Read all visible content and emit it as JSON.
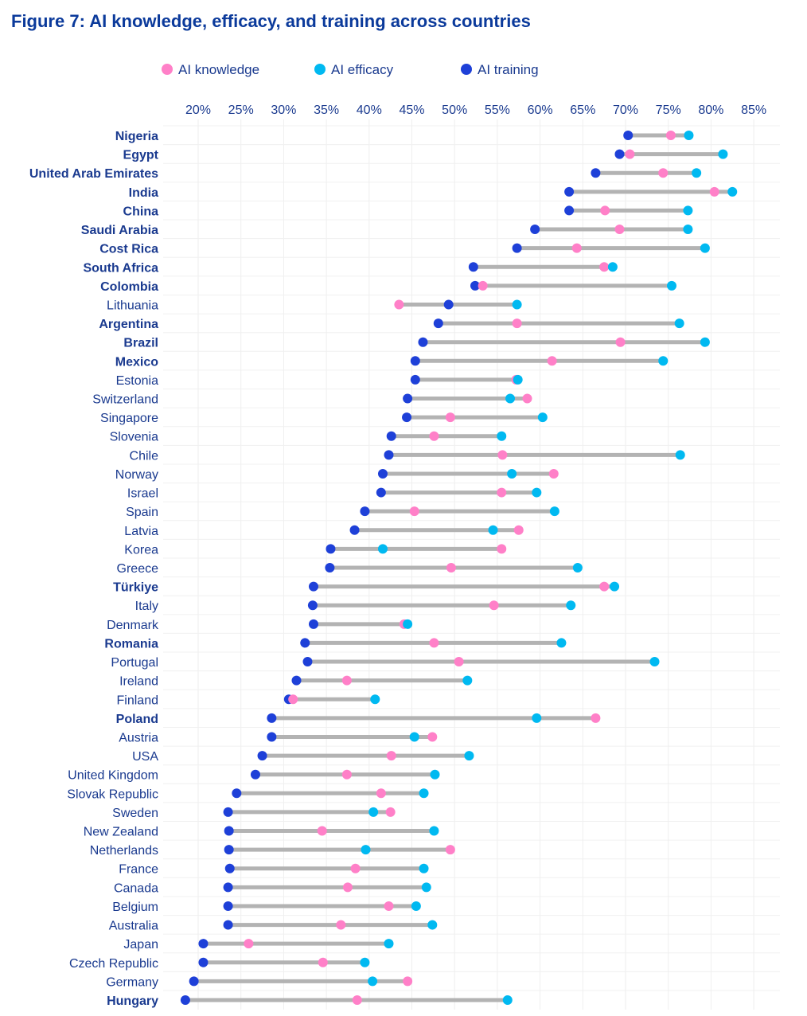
{
  "chart_data": {
    "type": "dot",
    "title": "Figure 7: AI knowledge, efficacy, and training across countries",
    "xlabel": "",
    "ylabel": "",
    "xlim": [
      18,
      87
    ],
    "x_ticks": [
      "20%",
      "25%",
      "30%",
      "35%",
      "40%",
      "45%",
      "50%",
      "55%",
      "60%",
      "65%",
      "70%",
      "75%",
      "80%",
      "85%"
    ],
    "x_tick_values": [
      20,
      25,
      30,
      35,
      40,
      45,
      50,
      55,
      60,
      65,
      70,
      75,
      80,
      85
    ],
    "grid": true,
    "legend_position": "top",
    "series": [
      {
        "name": "AI knowledge",
        "key": "k",
        "color": "#ff80c8"
      },
      {
        "name": "AI efficacy",
        "key": "e",
        "color": "#00b9f1"
      },
      {
        "name": "AI training",
        "key": "t",
        "color": "#1e40d8"
      }
    ],
    "connector_color": "#b3b3b3",
    "countries": [
      {
        "name": "Nigeria",
        "bold": true,
        "k": 75.3,
        "e": 77.4,
        "t": 70.3
      },
      {
        "name": "Egypt",
        "bold": true,
        "k": 70.5,
        "e": 81.4,
        "t": 69.3
      },
      {
        "name": "United Arab Emirates",
        "bold": true,
        "k": 74.4,
        "e": 78.3,
        "t": 66.5
      },
      {
        "name": "India",
        "bold": true,
        "k": 80.4,
        "e": 82.5,
        "t": 63.4
      },
      {
        "name": "China",
        "bold": true,
        "k": 67.6,
        "e": 77.3,
        "t": 63.4
      },
      {
        "name": "Saudi Arabia",
        "bold": true,
        "k": 69.3,
        "e": 77.3,
        "t": 59.4
      },
      {
        "name": "Cost Rica",
        "bold": true,
        "k": 64.3,
        "e": 79.3,
        "t": 57.3
      },
      {
        "name": "South Africa",
        "bold": true,
        "k": 67.5,
        "e": 68.5,
        "t": 52.2
      },
      {
        "name": "Colombia",
        "bold": true,
        "k": 53.3,
        "e": 75.4,
        "t": 52.4
      },
      {
        "name": "Lithuania",
        "bold": false,
        "k": 43.5,
        "e": 57.3,
        "t": 49.3
      },
      {
        "name": "Argentina",
        "bold": true,
        "k": 57.3,
        "e": 76.3,
        "t": 48.1
      },
      {
        "name": "Brazil",
        "bold": true,
        "k": 69.4,
        "e": 79.3,
        "t": 46.3
      },
      {
        "name": "Mexico",
        "bold": true,
        "k": 61.4,
        "e": 74.4,
        "t": 45.4
      },
      {
        "name": "Estonia",
        "bold": false,
        "k": 57.2,
        "e": 57.4,
        "t": 45.4
      },
      {
        "name": "Switzerland",
        "bold": false,
        "k": 58.5,
        "e": 56.5,
        "t": 44.5
      },
      {
        "name": "Singapore",
        "bold": false,
        "k": 49.5,
        "e": 60.3,
        "t": 44.4
      },
      {
        "name": "Slovenia",
        "bold": false,
        "k": 47.6,
        "e": 55.5,
        "t": 42.6
      },
      {
        "name": "Chile",
        "bold": false,
        "k": 55.6,
        "e": 76.4,
        "t": 42.3
      },
      {
        "name": "Norway",
        "bold": false,
        "k": 61.6,
        "e": 56.7,
        "t": 41.6
      },
      {
        "name": "Israel",
        "bold": false,
        "k": 55.5,
        "e": 59.6,
        "t": 41.4
      },
      {
        "name": "Spain",
        "bold": false,
        "k": 45.3,
        "e": 61.7,
        "t": 39.5
      },
      {
        "name": "Latvia",
        "bold": false,
        "k": 57.5,
        "e": 54.5,
        "t": 38.3
      },
      {
        "name": "Korea",
        "bold": false,
        "k": 55.5,
        "e": 41.6,
        "t": 35.5
      },
      {
        "name": "Greece",
        "bold": false,
        "k": 49.6,
        "e": 64.4,
        "t": 35.4
      },
      {
        "name": "Türkiye",
        "bold": true,
        "k": 67.5,
        "e": 68.7,
        "t": 33.5
      },
      {
        "name": "Italy",
        "bold": false,
        "k": 54.6,
        "e": 63.6,
        "t": 33.4
      },
      {
        "name": "Denmark",
        "bold": false,
        "k": 44.1,
        "e": 44.5,
        "t": 33.5
      },
      {
        "name": "Romania",
        "bold": true,
        "k": 47.6,
        "e": 62.5,
        "t": 32.5
      },
      {
        "name": "Portugal",
        "bold": false,
        "k": 50.5,
        "e": 73.4,
        "t": 32.8
      },
      {
        "name": "Ireland",
        "bold": false,
        "k": 37.4,
        "e": 51.5,
        "t": 31.5
      },
      {
        "name": "Finland",
        "bold": false,
        "k": 31.1,
        "e": 40.7,
        "t": 30.6
      },
      {
        "name": "Poland",
        "bold": true,
        "k": 66.5,
        "e": 59.6,
        "t": 28.6
      },
      {
        "name": "Austria",
        "bold": false,
        "k": 47.4,
        "e": 45.3,
        "t": 28.6
      },
      {
        "name": "USA",
        "bold": false,
        "k": 42.6,
        "e": 51.7,
        "t": 27.5
      },
      {
        "name": "United Kingdom",
        "bold": false,
        "k": 37.4,
        "e": 47.7,
        "t": 26.7
      },
      {
        "name": "Slovak Republic",
        "bold": false,
        "k": 41.4,
        "e": 46.4,
        "t": 24.5
      },
      {
        "name": "Sweden",
        "bold": false,
        "k": 42.5,
        "e": 40.5,
        "t": 23.5
      },
      {
        "name": "New Zealand",
        "bold": false,
        "k": 34.5,
        "e": 47.6,
        "t": 23.6
      },
      {
        "name": "Netherlands",
        "bold": false,
        "k": 49.5,
        "e": 39.6,
        "t": 23.6
      },
      {
        "name": "France",
        "bold": false,
        "k": 38.4,
        "e": 46.4,
        "t": 23.7
      },
      {
        "name": "Canada",
        "bold": false,
        "k": 37.5,
        "e": 46.7,
        "t": 23.5
      },
      {
        "name": "Belgium",
        "bold": false,
        "k": 42.3,
        "e": 45.5,
        "t": 23.5
      },
      {
        "name": "Australia",
        "bold": false,
        "k": 36.7,
        "e": 47.4,
        "t": 23.5
      },
      {
        "name": "Japan",
        "bold": false,
        "k": 25.9,
        "e": 42.3,
        "t": 20.6
      },
      {
        "name": "Czech Republic",
        "bold": false,
        "k": 34.6,
        "e": 39.5,
        "t": 20.6
      },
      {
        "name": "Germany",
        "bold": false,
        "k": 44.5,
        "e": 40.4,
        "t": 19.5
      },
      {
        "name": "Hungary",
        "bold": true,
        "k": 38.6,
        "e": 56.2,
        "t": 18.5
      }
    ]
  }
}
